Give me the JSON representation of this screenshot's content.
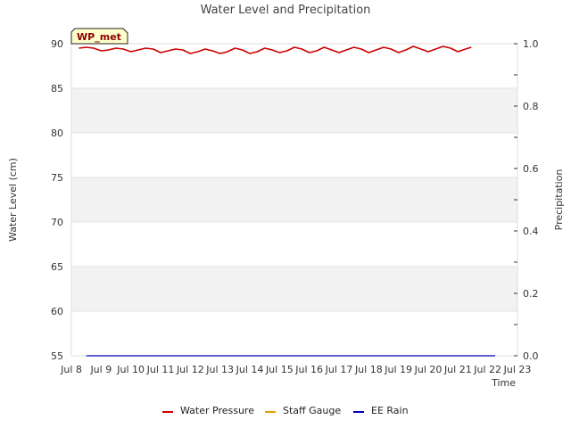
{
  "chart_data": {
    "type": "line",
    "title": "Water Level and Precipitation",
    "site_badge": "WP_met",
    "xlabel": "Time",
    "ylabel_left": "Water Level (cm)",
    "ylabel_right": "Precipitation",
    "ylim_left": [
      55,
      90
    ],
    "ylim_right": [
      0.0,
      1.0
    ],
    "yticks_left": [
      "55",
      "60",
      "65",
      "70",
      "75",
      "80",
      "85",
      "90"
    ],
    "yticks_right": [
      "0.0",
      "0.2",
      "0.4",
      "0.6",
      "0.8",
      "1.0"
    ],
    "x_day_range": [
      8,
      23
    ],
    "x_tick_labels": [
      "Jul 8",
      "Jul 9",
      "Jul 10",
      "Jul 11",
      "Jul 12",
      "Jul 13",
      "Jul 14",
      "Jul 15",
      "Jul 16",
      "Jul 17",
      "Jul 18",
      "Jul 19",
      "Jul 20",
      "Jul 21",
      "Jul 22",
      "Jul 23"
    ],
    "legend": [
      "Water Pressure",
      "Staff Gauge",
      "EE Rain"
    ],
    "series": [
      {
        "name": "Water Pressure",
        "axis": "left",
        "color": "#cc0000",
        "x_days": [
          8.25,
          8.5,
          8.75,
          9.0,
          9.25,
          9.5,
          9.75,
          10.0,
          10.25,
          10.5,
          10.75,
          11.0,
          11.25,
          11.5,
          11.75,
          12.0,
          12.25,
          12.5,
          12.75,
          13.0,
          13.25,
          13.5,
          13.75,
          14.0,
          14.25,
          14.5,
          14.75,
          15.0,
          15.25,
          15.5,
          15.75,
          16.0,
          16.25,
          16.5,
          16.75,
          17.0,
          17.25,
          17.5,
          17.75,
          18.0,
          18.25,
          18.5,
          18.75,
          19.0,
          19.25,
          19.5,
          19.75,
          20.0,
          20.25,
          20.5,
          20.75,
          21.0,
          21.25,
          21.45
        ],
        "values": [
          89.5,
          89.6,
          89.5,
          89.2,
          89.3,
          89.5,
          89.4,
          89.1,
          89.3,
          89.5,
          89.4,
          89.0,
          89.2,
          89.4,
          89.3,
          88.9,
          89.1,
          89.4,
          89.2,
          88.9,
          89.1,
          89.5,
          89.3,
          88.9,
          89.1,
          89.5,
          89.3,
          89.0,
          89.2,
          89.6,
          89.4,
          89.0,
          89.2,
          89.6,
          89.3,
          89.0,
          89.3,
          89.6,
          89.4,
          89.0,
          89.3,
          89.6,
          89.4,
          89.0,
          89.3,
          89.7,
          89.4,
          89.1,
          89.4,
          89.7,
          89.5,
          89.1,
          89.4,
          89.6
        ]
      },
      {
        "name": "Staff Gauge",
        "axis": "left",
        "color": "#e6a000",
        "x_days": [],
        "values": []
      },
      {
        "name": "EE Rain",
        "axis": "right",
        "color": "#0000bb",
        "x_days": [
          8.5,
          22.25
        ],
        "values": [
          0.0,
          0.0
        ]
      }
    ]
  }
}
